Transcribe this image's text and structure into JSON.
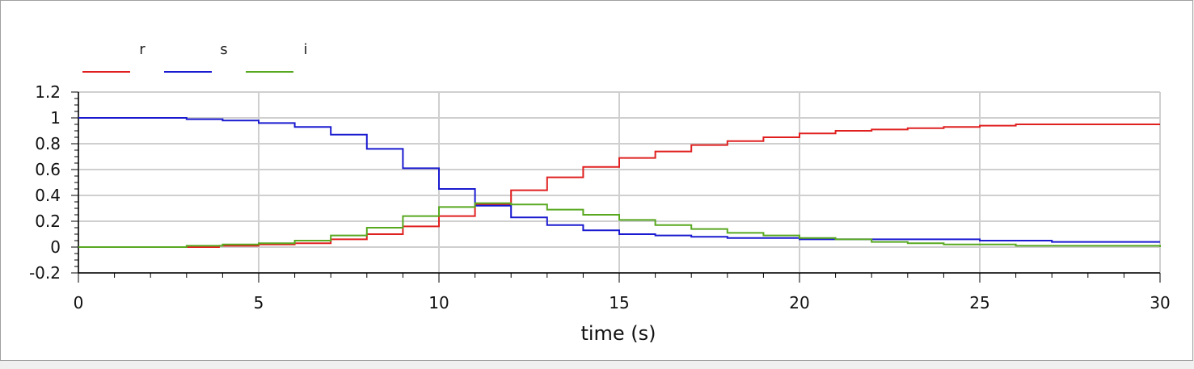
{
  "chart_data": {
    "type": "line",
    "xlabel": "time (s)",
    "ylabel": "",
    "xlim": [
      0,
      30
    ],
    "ylim": [
      -0.2,
      1.2
    ],
    "x_ticks": [
      "0",
      "5",
      "10",
      "15",
      "20",
      "25",
      "30"
    ],
    "y_ticks": [
      "1.2",
      "1",
      "0.8",
      "0.6",
      "0.4",
      "0.2",
      "0",
      "-0.2"
    ],
    "grid": true,
    "legend_position": "top-left",
    "line_style": "step",
    "series": [
      {
        "name": "r",
        "color": "#e02020",
        "x": [
          0,
          2.6,
          3.9,
          5.0,
          6.0,
          7.0,
          8.0,
          9.0,
          10.0,
          11.0,
          12.0,
          13.0,
          14.0,
          15.0,
          16.0,
          17.0,
          18.0,
          19.0,
          20.0,
          21.0,
          22.0,
          23.0,
          24.0,
          25.0,
          26.0,
          27.0,
          28.0,
          29.0,
          30.0
        ],
        "values": [
          0.0,
          0.0,
          0.01,
          0.02,
          0.03,
          0.06,
          0.1,
          0.16,
          0.24,
          0.33,
          0.44,
          0.54,
          0.62,
          0.69,
          0.74,
          0.79,
          0.82,
          0.85,
          0.88,
          0.9,
          0.91,
          0.92,
          0.93,
          0.94,
          0.95,
          0.95,
          0.95,
          0.95,
          0.95
        ]
      },
      {
        "name": "s",
        "color": "#1a1ad0",
        "x": [
          0,
          1.0,
          2.0,
          3.0,
          4.0,
          5.0,
          6.0,
          7.0,
          8.0,
          9.0,
          10.0,
          11.0,
          12.0,
          13.0,
          14.0,
          15.0,
          16.0,
          17.0,
          18.0,
          19.0,
          20.0,
          21.0,
          22.0,
          23.0,
          24.0,
          25.0,
          26.0,
          27.0,
          28.0,
          29.0,
          30.0
        ],
        "values": [
          1.0,
          1.0,
          1.0,
          0.99,
          0.98,
          0.96,
          0.93,
          0.87,
          0.76,
          0.61,
          0.45,
          0.32,
          0.23,
          0.17,
          0.13,
          0.1,
          0.09,
          0.08,
          0.07,
          0.07,
          0.06,
          0.06,
          0.06,
          0.06,
          0.06,
          0.05,
          0.05,
          0.04,
          0.04,
          0.04,
          0.04
        ]
      },
      {
        "name": "i",
        "color": "#58a820",
        "x": [
          0,
          2.0,
          3.0,
          4.0,
          5.0,
          6.0,
          7.0,
          8.0,
          9.0,
          10.0,
          11.0,
          12.0,
          13.0,
          14.0,
          15.0,
          16.0,
          17.0,
          18.0,
          19.0,
          20.0,
          21.0,
          22.0,
          23.0,
          24.0,
          25.0,
          26.0,
          27.0,
          28.0,
          29.0,
          30.0
        ],
        "values": [
          0.0,
          0.0,
          0.01,
          0.02,
          0.03,
          0.05,
          0.09,
          0.15,
          0.24,
          0.31,
          0.34,
          0.33,
          0.29,
          0.25,
          0.21,
          0.17,
          0.14,
          0.11,
          0.09,
          0.07,
          0.06,
          0.04,
          0.03,
          0.02,
          0.02,
          0.01,
          0.01,
          0.01,
          0.01,
          0.0
        ]
      }
    ]
  }
}
